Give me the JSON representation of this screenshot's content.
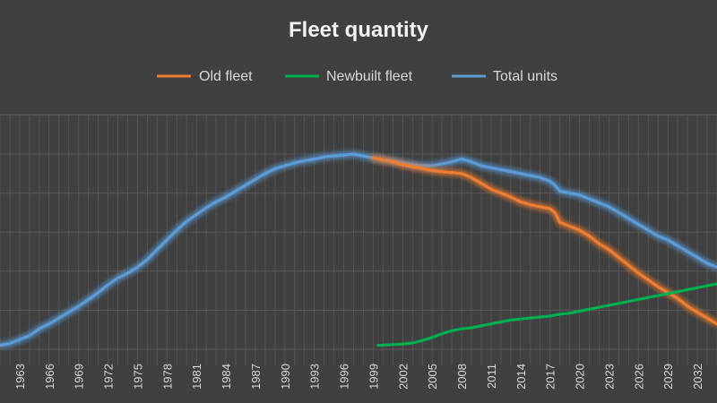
{
  "chart_data": {
    "type": "line",
    "title": "Fleet quantity",
    "legend_position": "top",
    "grid": true,
    "xlabel": "",
    "ylabel": "",
    "x_tick_labels": [
      "1963",
      "1966",
      "1969",
      "1972",
      "1975",
      "1978",
      "1981",
      "1984",
      "1987",
      "1990",
      "1993",
      "1996",
      "1999",
      "2002",
      "2005",
      "2008",
      "2011",
      "2014",
      "2017",
      "2020",
      "2023",
      "2026",
      "2029",
      "2032"
    ],
    "xlim": [
      1961,
      2034
    ],
    "ylim": [
      0,
      100
    ],
    "series": [
      {
        "name": "Old fleet",
        "color": "#ed7d31",
        "points": [
          [
            1999,
            98
          ],
          [
            2000,
            97
          ],
          [
            2001,
            96
          ],
          [
            2002,
            94.5
          ],
          [
            2003,
            93.5
          ],
          [
            2004,
            92.5
          ],
          [
            2005,
            91.5
          ],
          [
            2006,
            91
          ],
          [
            2007,
            90.5
          ],
          [
            2008,
            90
          ],
          [
            2009,
            88
          ],
          [
            2010,
            85
          ],
          [
            2011,
            82
          ],
          [
            2012,
            80
          ],
          [
            2013,
            78
          ],
          [
            2014,
            75.5
          ],
          [
            2015,
            74
          ],
          [
            2016,
            73
          ],
          [
            2017,
            72
          ],
          [
            2017.5,
            70
          ],
          [
            2018,
            65
          ],
          [
            2019,
            63
          ],
          [
            2020,
            61
          ],
          [
            2021,
            58
          ],
          [
            2022,
            54
          ],
          [
            2023,
            51
          ],
          [
            2024,
            47
          ],
          [
            2025,
            43
          ],
          [
            2026,
            39
          ],
          [
            2027,
            35.5
          ],
          [
            2028,
            32
          ],
          [
            2029,
            29
          ],
          [
            2030,
            26
          ],
          [
            2031,
            22
          ],
          [
            2032,
            19
          ],
          [
            2033,
            16
          ],
          [
            2034,
            13
          ]
        ]
      },
      {
        "name": "Newbuilt fleet",
        "color": "#00b050",
        "points": [
          [
            1999.5,
            2
          ],
          [
            2000,
            2.1
          ],
          [
            2001,
            2.4
          ],
          [
            2002,
            2.7
          ],
          [
            2003,
            3.2
          ],
          [
            2004,
            4.5
          ],
          [
            2005,
            6
          ],
          [
            2006,
            8
          ],
          [
            2007,
            9.5
          ],
          [
            2008,
            10.5
          ],
          [
            2009,
            11
          ],
          [
            2010,
            12
          ],
          [
            2011,
            13
          ],
          [
            2012,
            14
          ],
          [
            2013,
            15
          ],
          [
            2014,
            15.5
          ],
          [
            2015,
            16
          ],
          [
            2016,
            16.5
          ],
          [
            2017,
            17
          ],
          [
            2018,
            18
          ],
          [
            2019,
            18.5
          ],
          [
            2020,
            19.5
          ],
          [
            2021,
            20.5
          ],
          [
            2022,
            21.5
          ],
          [
            2023,
            22.5
          ],
          [
            2024,
            23.5
          ],
          [
            2025,
            24.5
          ],
          [
            2026,
            25.5
          ],
          [
            2027,
            26.5
          ],
          [
            2028,
            27.5
          ],
          [
            2029,
            28.5
          ],
          [
            2030,
            29.5
          ],
          [
            2031,
            30.5
          ],
          [
            2032,
            31.5
          ],
          [
            2033,
            32.5
          ],
          [
            2034,
            33.5
          ]
        ]
      },
      {
        "name": "Total units",
        "color": "#5b9bd5",
        "points": [
          [
            1961,
            2
          ],
          [
            1962,
            3
          ],
          [
            1963,
            5
          ],
          [
            1964,
            7
          ],
          [
            1965,
            10.5
          ],
          [
            1966,
            13
          ],
          [
            1967,
            16
          ],
          [
            1968,
            19
          ],
          [
            1969,
            22
          ],
          [
            1970,
            25.5
          ],
          [
            1971,
            29
          ],
          [
            1972,
            33
          ],
          [
            1973,
            36.5
          ],
          [
            1974,
            39
          ],
          [
            1975,
            42
          ],
          [
            1976,
            46
          ],
          [
            1977,
            51
          ],
          [
            1978,
            56
          ],
          [
            1979,
            61
          ],
          [
            1980,
            65.5
          ],
          [
            1981,
            69
          ],
          [
            1982,
            72.5
          ],
          [
            1983,
            75.5
          ],
          [
            1984,
            78
          ],
          [
            1985,
            81
          ],
          [
            1986,
            84
          ],
          [
            1987,
            87
          ],
          [
            1988,
            90
          ],
          [
            1989,
            92.5
          ],
          [
            1990,
            94
          ],
          [
            1991,
            95.5
          ],
          [
            1992,
            96.5
          ],
          [
            1993,
            97.5
          ],
          [
            1994,
            98.5
          ],
          [
            1995,
            99
          ],
          [
            1996,
            99.5
          ],
          [
            1997,
            100
          ],
          [
            1998,
            99
          ],
          [
            1999,
            98
          ],
          [
            2000,
            97
          ],
          [
            2001,
            96.5
          ],
          [
            2002,
            95.5
          ],
          [
            2003,
            94.5
          ],
          [
            2004,
            94
          ],
          [
            2005,
            94
          ],
          [
            2006,
            95
          ],
          [
            2007,
            96
          ],
          [
            2008,
            97.5
          ],
          [
            2009,
            96
          ],
          [
            2010,
            94
          ],
          [
            2011,
            93
          ],
          [
            2012,
            92
          ],
          [
            2013,
            91
          ],
          [
            2014,
            90
          ],
          [
            2015,
            89
          ],
          [
            2016,
            88
          ],
          [
            2017,
            86
          ],
          [
            2017.5,
            84
          ],
          [
            2018,
            81
          ],
          [
            2019,
            80
          ],
          [
            2020,
            79
          ],
          [
            2021,
            77
          ],
          [
            2022,
            75
          ],
          [
            2023,
            73
          ],
          [
            2024,
            70
          ],
          [
            2025,
            67
          ],
          [
            2026,
            64
          ],
          [
            2027,
            61
          ],
          [
            2028,
            58
          ],
          [
            2029,
            56
          ],
          [
            2030,
            53
          ],
          [
            2031,
            50
          ],
          [
            2032,
            47
          ],
          [
            2033,
            44
          ],
          [
            2034,
            42
          ]
        ]
      }
    ]
  }
}
